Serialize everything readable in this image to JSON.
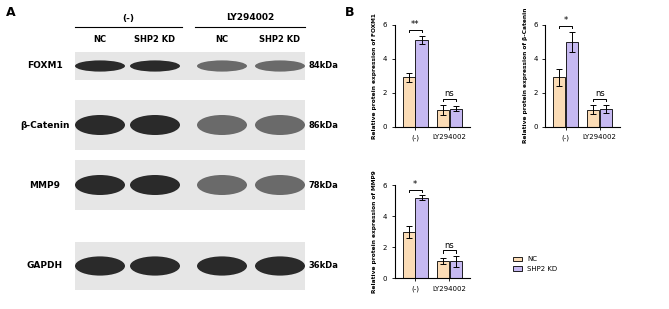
{
  "panel_labels": [
    "A",
    "B"
  ],
  "blot": {
    "groups": [
      {
        "label": "(-)",
        "lanes": [
          "NC",
          "SHP2 KD"
        ]
      },
      {
        "label": "LY294002",
        "lanes": [
          "NC",
          "SHP2 KD"
        ]
      }
    ],
    "proteins": [
      {
        "name": "FOXM1",
        "size": "84kDa"
      },
      {
        "name": "β-Catenin",
        "size": "86kDa"
      },
      {
        "name": "MMP9",
        "size": "78kDa"
      },
      {
        "name": "GAPDH",
        "size": "36kDa"
      }
    ]
  },
  "chart_data": [
    {
      "type": "bar",
      "ylabel": "Relative protein expression of FOXM1",
      "categories": [
        "(-)",
        "LY294002"
      ],
      "series": [
        {
          "name": "NC",
          "color": "#fbdcb6",
          "values": [
            2.9,
            1.0
          ],
          "errors": [
            0.25,
            0.3
          ]
        },
        {
          "name": "SHP2 KD",
          "color": "#c6b9f1",
          "values": [
            5.1,
            1.05
          ],
          "errors": [
            0.25,
            0.15
          ]
        }
      ],
      "ylim": [
        0,
        6
      ],
      "yticks": [
        0,
        2,
        4,
        6
      ],
      "significance": [
        "**",
        "ns"
      ]
    },
    {
      "type": "bar",
      "ylabel": "Relative protein expression of β-Catenin",
      "categories": [
        "(-)",
        "LY294002"
      ],
      "series": [
        {
          "name": "NC",
          "color": "#fbdcb6",
          "values": [
            2.9,
            1.0
          ],
          "errors": [
            0.5,
            0.25
          ]
        },
        {
          "name": "SHP2 KD",
          "color": "#c6b9f1",
          "values": [
            5.0,
            1.05
          ],
          "errors": [
            0.6,
            0.25
          ]
        }
      ],
      "ylim": [
        0,
        6
      ],
      "yticks": [
        0,
        2,
        4,
        6
      ],
      "significance": [
        "*",
        "ns"
      ]
    },
    {
      "type": "bar",
      "ylabel": "Relative protein expression of MMP9",
      "categories": [
        "(-)",
        "LY294002"
      ],
      "series": [
        {
          "name": "NC",
          "color": "#fbdcb6",
          "values": [
            3.0,
            1.1
          ],
          "errors": [
            0.4,
            0.2
          ]
        },
        {
          "name": "SHP2 KD",
          "color": "#c6b9f1",
          "values": [
            5.2,
            1.1
          ],
          "errors": [
            0.15,
            0.35
          ]
        }
      ],
      "ylim": [
        0,
        6
      ],
      "yticks": [
        0,
        2,
        4,
        6
      ],
      "significance": [
        "*",
        "ns"
      ],
      "legend": "lower left"
    }
  ]
}
